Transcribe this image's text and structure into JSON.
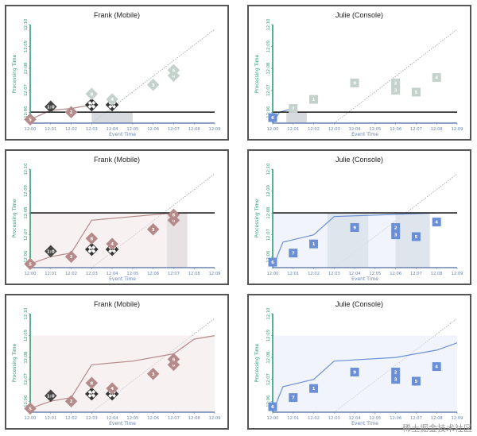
{
  "axes": {
    "x_label": "Event Time",
    "y_label": "Processing Time",
    "x_ticks": [
      "12:00",
      "12:01",
      "12:02",
      "12:03",
      "12:04",
      "12:05",
      "12:06",
      "12:07",
      "12:08",
      "12:09"
    ],
    "y_ticks": [
      "12:06",
      "12:07",
      "12:08",
      "12:09",
      "12:10"
    ]
  },
  "colors": {
    "frank": "#b58a8a",
    "frank_light": "#f2e6e6",
    "julie": "#6b8fd6",
    "julie_light": "#e6ecf7",
    "future": "#c5d1cb",
    "slab": "#c9cfd6",
    "watermark_line": "#222222",
    "axis_y": "#2f9c77",
    "axis_x": "#6a84b0"
  },
  "watermark": "稀土掘金技术社区",
  "panels": [
    {
      "title": "Frank (Mobile)",
      "kind": "frank",
      "step": 0,
      "watermark_y": "12:06"
    },
    {
      "title": "Julie (Console)",
      "kind": "julie",
      "step": 0,
      "watermark_y": "12:06"
    },
    {
      "title": "Frank (Mobile)",
      "kind": "frank",
      "step": 1,
      "watermark_y": "12:08"
    },
    {
      "title": "Julie (Console)",
      "kind": "julie",
      "step": 1,
      "watermark_y": "12:08"
    },
    {
      "title": "Frank (Mobile)",
      "kind": "frank",
      "step": 2
    },
    {
      "title": "Julie (Console)",
      "kind": "julie",
      "step": 2
    }
  ],
  "chart_data": [
    {
      "type": "scatter",
      "title": "Frank (Mobile)",
      "xlabel": "Event Time",
      "ylabel": "Processing Time",
      "series": [
        {
          "values": [
            {
              "x": "12:00",
              "y": "12:05:40",
              "label": "5",
              "state": "emitted"
            },
            {
              "x": "12:01",
              "y": "12:06:15",
              "label": "1:0",
              "state": "dark"
            },
            {
              "x": "12:02",
              "y": "12:06:00",
              "label": "2",
              "state": "emitted"
            },
            {
              "x": "12:03",
              "y": "12:06:20",
              "label": "5",
              "state": "merged"
            },
            {
              "x": "12:04",
              "y": "12:06:20",
              "label": "1",
              "state": "merged"
            },
            {
              "x": "12:03",
              "y": "12:06:50",
              "label": "8",
              "state": "future"
            },
            {
              "x": "12:04",
              "y": "12:06:35",
              "label": "4",
              "state": "future"
            },
            {
              "x": "12:06",
              "y": "12:07:15",
              "label": "3",
              "state": "future"
            },
            {
              "x": "12:07",
              "y": "12:07:40",
              "label": "6",
              "state": "future"
            },
            {
              "x": "12:07",
              "y": "12:07:55",
              "label": "6",
              "state": "future"
            }
          ]
        }
      ]
    },
    {
      "type": "scatter",
      "title": "Julie (Console)",
      "xlabel": "Event Time",
      "ylabel": "Processing Time",
      "series": [
        {
          "values": [
            {
              "x": "12:00",
              "y": "12:05:45",
              "label": "6",
              "state": "emitted"
            },
            {
              "x": "12:01",
              "y": "12:06:10",
              "label": "7",
              "state": "future"
            },
            {
              "x": "12:02",
              "y": "12:06:35",
              "label": "1",
              "state": "future"
            },
            {
              "x": "12:04",
              "y": "12:07:20",
              "label": "9",
              "state": "future"
            },
            {
              "x": "12:06",
              "y": "12:07:00",
              "label": "3",
              "state": "future"
            },
            {
              "x": "12:06",
              "y": "12:07:20",
              "label": "2",
              "state": "future"
            },
            {
              "x": "12:07",
              "y": "12:06:55",
              "label": "5",
              "state": "future"
            },
            {
              "x": "12:08",
              "y": "12:07:35",
              "label": "4",
              "state": "future"
            }
          ]
        }
      ]
    }
  ]
}
